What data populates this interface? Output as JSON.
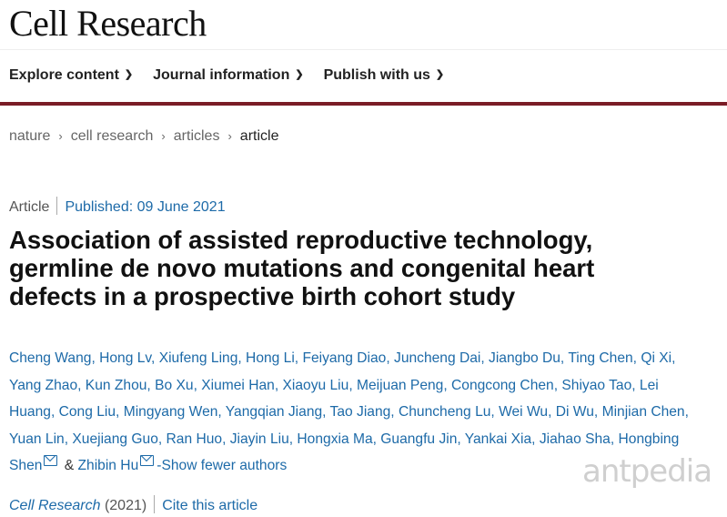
{
  "site": {
    "brand": "Cell Research",
    "watermark": "antpedia"
  },
  "nav": {
    "items": [
      {
        "label": "Explore content",
        "icon": "chevron-down-icon"
      },
      {
        "label": "Journal information",
        "icon": "chevron-down-icon"
      },
      {
        "label": "Publish with us",
        "icon": "chevron-down-icon"
      }
    ]
  },
  "breadcrumb": {
    "items": [
      "nature",
      "cell research",
      "articles",
      "article"
    ],
    "separator": "›"
  },
  "article": {
    "type": "Article",
    "published": "Published: 09 June 2021",
    "title_lines": [
      "Association of assisted reproductive technology,",
      "germline de novo mutations and congenital heart",
      "defects in a prospective birth cohort study"
    ],
    "author_lines": [
      "Cheng Wang, Hong Lv, Xiufeng Ling, Hong Li, Feiyang Diao, Juncheng Dai, Jiangbo Du, Ting Chen, Qi Xi,",
      "Yang Zhao, Kun Zhou, Bo Xu, Xiumei Han, Xiaoyu Liu, Meijuan Peng, Congcong Chen, Shiyao Tao, Lei",
      "Huang, Cong Liu, Mingyang Wen, Yangqian Jiang, Tao Jiang, Chuncheng Lu, Wei Wu, Di Wu, Minjian Chen,",
      "Yuan Lin, Xuejiang Guo, Ran Huo, Jiayin Liu, Hongxia Ma, Guangfu Jin, Yankai Xia, Jiahao Sha, Hongbing"
    ],
    "last_line": {
      "author1": "Shen",
      "joiner": " & ",
      "author2": "Zhibin Hu",
      "toggle": "-Show fewer authors"
    },
    "journal": "Cell Research",
    "year": "(2021)",
    "cite": "Cite this article"
  },
  "colors": {
    "accent": "#7a1c26",
    "link": "#1d6aa8"
  }
}
